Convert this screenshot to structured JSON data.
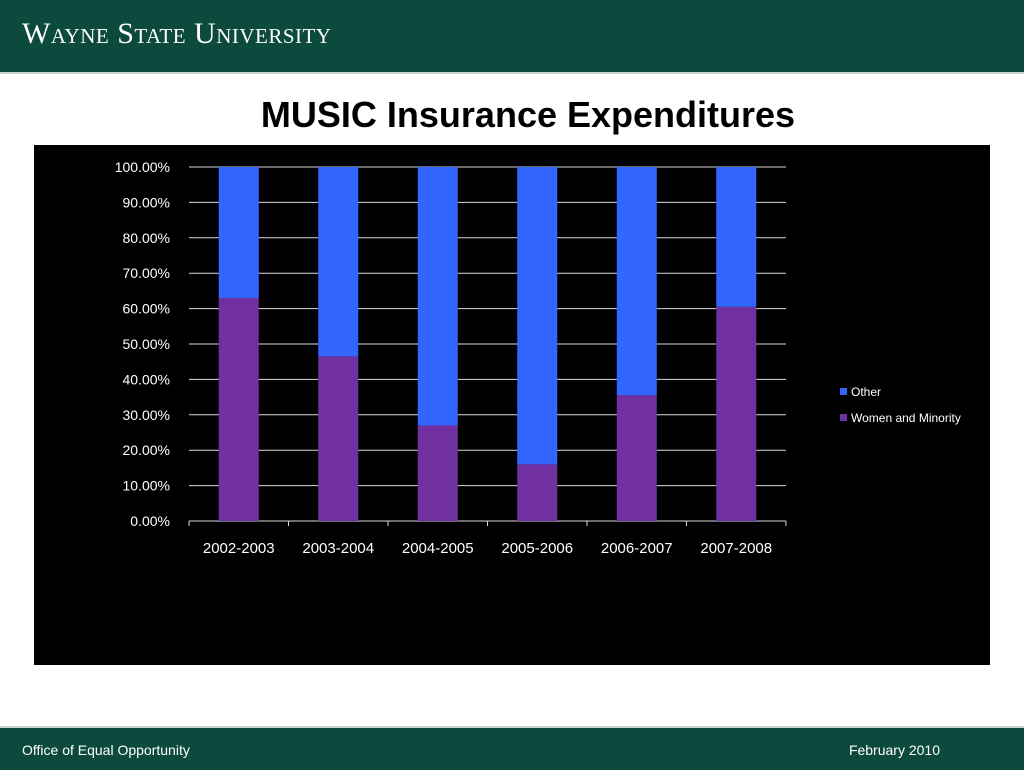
{
  "header": {
    "logo_text": "Wayne State University"
  },
  "slide": {
    "title": "MUSIC Insurance Expenditures"
  },
  "footer": {
    "left": "Office of Equal Opportunity",
    "right": "February 2010"
  },
  "colors": {
    "header_bg": "#0d4a3e",
    "other": "#3366ff",
    "women_minority": "#7030a0",
    "plot_bg": "#000000"
  },
  "chart_data": {
    "type": "bar",
    "stacked": true,
    "percent": true,
    "categories": [
      "2002-2003",
      "2003-2004",
      "2004-2005",
      "2005-2006",
      "2006-2007",
      "2007-2008"
    ],
    "series": [
      {
        "name": "Women and Minority",
        "values": [
          0.63,
          0.465,
          0.27,
          0.16,
          0.355,
          0.605
        ]
      },
      {
        "name": "Other",
        "values": [
          0.37,
          0.535,
          0.73,
          0.84,
          0.645,
          0.395
        ]
      }
    ],
    "y_ticks": [
      "0.00%",
      "10.00%",
      "20.00%",
      "30.00%",
      "40.00%",
      "50.00%",
      "60.00%",
      "70.00%",
      "80.00%",
      "90.00%",
      "100.00%"
    ],
    "ylim": [
      0,
      1
    ],
    "grid": true,
    "legend_position": "right",
    "legend_order": [
      "Other",
      "Women and Minority"
    ]
  }
}
